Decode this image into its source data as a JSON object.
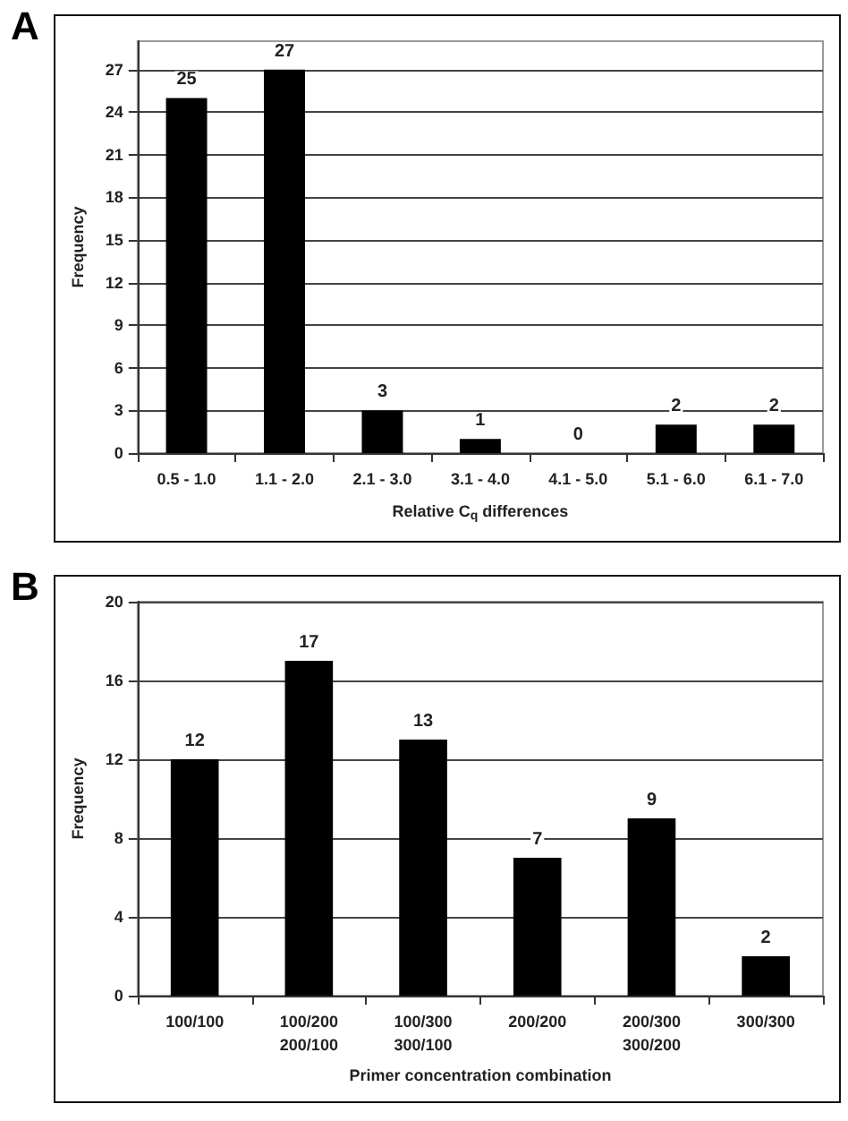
{
  "chart_data": [
    {
      "type": "bar",
      "title": "A",
      "xlabel": "Relative C$_{q}$ differences",
      "ylabel": "Frequency",
      "categories": [
        "0.5 - 1.0",
        "1.1 - 2.0",
        "2.1 - 3.0",
        "3.1 - 4.0",
        "4.1 - 5.0",
        "5.1 - 6.0",
        "6.1 - 7.0"
      ],
      "values": [
        25,
        27,
        3,
        1,
        0,
        2,
        2
      ],
      "color": "#000000",
      "ylim": [
        0,
        29
      ],
      "yticks": [
        0,
        3,
        6,
        9,
        12,
        15,
        18,
        21,
        24,
        27
      ],
      "grid": "y",
      "data_labels": true
    },
    {
      "type": "bar",
      "title": "B",
      "xlabel": "Primer concentration combination",
      "ylabel": "Frequency",
      "categories": [
        "100/100",
        "100/200\n200/100",
        "100/300\n300/100",
        "200/200",
        "200/300\n300/200",
        "300/300"
      ],
      "values": [
        12,
        17,
        13,
        7,
        9,
        2
      ],
      "color": "#000000",
      "ylim": [
        0,
        20
      ],
      "yticks": [
        0,
        4,
        8,
        12,
        16,
        20
      ],
      "grid": "y",
      "data_labels": true
    }
  ]
}
